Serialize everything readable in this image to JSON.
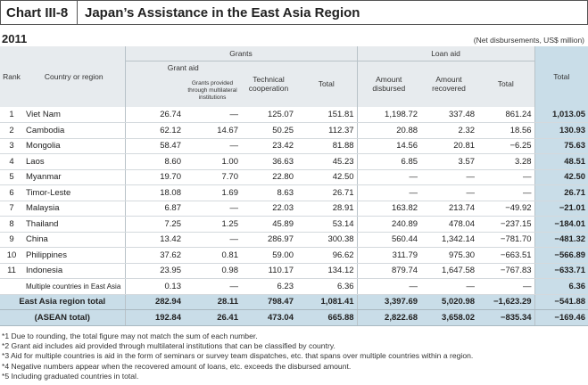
{
  "header": {
    "chart_no": "Chart III-8",
    "title": "Japan’s Assistance in the East Asia Region"
  },
  "year": "2011",
  "unit_note": "(Net disbursements, US$ million)",
  "columns": {
    "grants": "Grants",
    "loan_aid": "Loan aid",
    "grant_aid": "Grant aid",
    "rank": "Rank",
    "country": "Country or region",
    "grants_multilateral": "Grants provided through multilateral institutions",
    "technical": "Technical cooperation",
    "total_grants": "Total",
    "amount_disbursed": "Amount disbursed",
    "amount_recovered": "Amount recovered",
    "total_loan": "Total",
    "total": "Total"
  },
  "rows": [
    {
      "rank": "1",
      "country": "Viet Nam",
      "grant_aid": "26.74",
      "multi": "—",
      "tech": "125.07",
      "gtotal": "151.81",
      "disbursed": "1,198.72",
      "recovered": "337.48",
      "ltotal": "861.24",
      "total": "1,013.05"
    },
    {
      "rank": "2",
      "country": "Cambodia",
      "grant_aid": "62.12",
      "multi": "14.67",
      "tech": "50.25",
      "gtotal": "112.37",
      "disbursed": "20.88",
      "recovered": "2.32",
      "ltotal": "18.56",
      "total": "130.93"
    },
    {
      "rank": "3",
      "country": "Mongolia",
      "grant_aid": "58.47",
      "multi": "—",
      "tech": "23.42",
      "gtotal": "81.88",
      "disbursed": "14.56",
      "recovered": "20.81",
      "ltotal": "−6.25",
      "total": "75.63"
    },
    {
      "rank": "4",
      "country": "Laos",
      "grant_aid": "8.60",
      "multi": "1.00",
      "tech": "36.63",
      "gtotal": "45.23",
      "disbursed": "6.85",
      "recovered": "3.57",
      "ltotal": "3.28",
      "total": "48.51"
    },
    {
      "rank": "5",
      "country": "Myanmar",
      "grant_aid": "19.70",
      "multi": "7.70",
      "tech": "22.80",
      "gtotal": "42.50",
      "disbursed": "—",
      "recovered": "—",
      "ltotal": "—",
      "total": "42.50"
    },
    {
      "rank": "6",
      "country": "Timor-Leste",
      "grant_aid": "18.08",
      "multi": "1.69",
      "tech": "8.63",
      "gtotal": "26.71",
      "disbursed": "—",
      "recovered": "—",
      "ltotal": "—",
      "total": "26.71"
    },
    {
      "rank": "7",
      "country": "Malaysia",
      "grant_aid": "6.87",
      "multi": "—",
      "tech": "22.03",
      "gtotal": "28.91",
      "disbursed": "163.82",
      "recovered": "213.74",
      "ltotal": "−49.92",
      "total": "−21.01"
    },
    {
      "rank": "8",
      "country": "Thailand",
      "grant_aid": "7.25",
      "multi": "1.25",
      "tech": "45.89",
      "gtotal": "53.14",
      "disbursed": "240.89",
      "recovered": "478.04",
      "ltotal": "−237.15",
      "total": "−184.01"
    },
    {
      "rank": "9",
      "country": "China",
      "grant_aid": "13.42",
      "multi": "—",
      "tech": "286.97",
      "gtotal": "300.38",
      "disbursed": "560.44",
      "recovered": "1,342.14",
      "ltotal": "−781.70",
      "total": "−481.32"
    },
    {
      "rank": "10",
      "country": "Philippines",
      "grant_aid": "37.62",
      "multi": "0.81",
      "tech": "59.00",
      "gtotal": "96.62",
      "disbursed": "311.79",
      "recovered": "975.30",
      "ltotal": "−663.51",
      "total": "−566.89"
    },
    {
      "rank": "11",
      "country": "Indonesia",
      "grant_aid": "23.95",
      "multi": "0.98",
      "tech": "110.17",
      "gtotal": "134.12",
      "disbursed": "879.74",
      "recovered": "1,647.58",
      "ltotal": "−767.83",
      "total": "−633.71"
    },
    {
      "rank": "",
      "country": "Multiple countries in East Asia",
      "grant_aid": "0.13",
      "multi": "—",
      "tech": "6.23",
      "gtotal": "6.36",
      "disbursed": "—",
      "recovered": "—",
      "ltotal": "—",
      "total": "6.36"
    }
  ],
  "summary": [
    {
      "label": "East Asia region total",
      "grant_aid": "282.94",
      "multi": "28.11",
      "tech": "798.47",
      "gtotal": "1,081.41",
      "disbursed": "3,397.69",
      "recovered": "5,020.98",
      "ltotal": "−1,623.29",
      "total": "−541.88"
    },
    {
      "label": "(ASEAN total)",
      "grant_aid": "192.84",
      "multi": "26.41",
      "tech": "473.04",
      "gtotal": "665.88",
      "disbursed": "2,822.68",
      "recovered": "3,658.02",
      "ltotal": "−835.34",
      "total": "−169.46"
    }
  ],
  "notes": [
    "*1 Due to rounding, the total figure may not match the sum of each number.",
    "*2 Grant aid includes aid provided through multilateral institutions that can be classified by country.",
    "*3 Aid for multiple countries is aid in the form of seminars or survey team dispatches, etc. that spans over multiple countries within a region.",
    "*4 Negative numbers appear when the recovered amount of loans, etc. exceeds the disbursed amount.",
    "*5 Including graduated countries in total."
  ]
}
